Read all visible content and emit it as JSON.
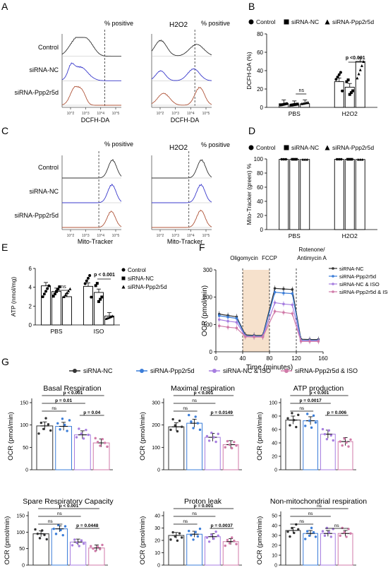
{
  "figure": {
    "panels": {
      "A": "A",
      "B": "B",
      "C": "C",
      "D": "D",
      "E": "E",
      "F": "F",
      "G": "G"
    }
  },
  "panelA": {
    "col1_header": "% positive",
    "col2_title": "H2O2",
    "col2_header": "% positive",
    "rows": [
      "Control",
      "siRNA-NC",
      "siRNA-Ppp2r5d"
    ],
    "xlabel": "DCFH-DA",
    "ticks": [
      "10^2",
      "10^3",
      "10^4",
      "10^5"
    ],
    "colors": {
      "control": "#333333",
      "nc": "#3a3acc",
      "ppp": "#b0553a"
    }
  },
  "panelC": {
    "col1_header": "% positive",
    "col2_title": "H2O2",
    "col2_header": "% positive",
    "rows": [
      "Control",
      "siRNA-NC",
      "siRNA-Ppp2r5d"
    ],
    "xlabel": "Mito-Tracker",
    "ticks": [
      "10^2",
      "10^3",
      "10^4",
      "10^5"
    ]
  },
  "legends": {
    "three_group": [
      "Control",
      "siRNA-NC",
      "siRNA-Ppp2r5d"
    ],
    "four_group": [
      "siRNA-NC",
      "siRNA-Ppp2r5d",
      "siRNA-NC & ISO",
      "siRNA-Ppp2r5d & ISO"
    ],
    "four_colors": [
      "#333333",
      "#3b7dd8",
      "#a77ee0",
      "#d07aa8"
    ]
  },
  "chart_data": [
    {
      "id": "B",
      "type": "bar",
      "ylabel": "DCFH-DA (%)",
      "categories": [
        "PBS",
        "H2O2"
      ],
      "ylim": [
        0,
        80
      ],
      "yticks": [
        0,
        20,
        40,
        60,
        80
      ],
      "series": [
        {
          "name": "Control",
          "values": [
            4,
            28
          ]
        },
        {
          "name": "siRNA-NC",
          "values": [
            3,
            22
          ]
        },
        {
          "name": "siRNA-Ppp2r5d",
          "values": [
            4,
            50
          ]
        }
      ],
      "annotations": [
        "ns",
        "p <0.001"
      ]
    },
    {
      "id": "D",
      "type": "bar",
      "ylabel": "Mito-Tracker (green) %",
      "categories": [
        "PBS",
        "H2O2"
      ],
      "ylim": [
        0,
        100
      ],
      "yticks": [
        0,
        20,
        40,
        60,
        80,
        100
      ],
      "series": [
        {
          "name": "Control",
          "values": [
            99.5,
            99.5
          ]
        },
        {
          "name": "siRNA-NC",
          "values": [
            99.5,
            99.5
          ]
        },
        {
          "name": "siRNA-Ppp2r5d",
          "values": [
            99.3,
            99.3
          ]
        }
      ]
    },
    {
      "id": "E",
      "type": "bar",
      "ylabel": "ATP (nmol/mg)",
      "categories": [
        "PBS",
        "ISO"
      ],
      "ylim": [
        0,
        6
      ],
      "yticks": [
        0,
        2,
        4,
        6
      ],
      "series": [
        {
          "name": "Control",
          "values": [
            4.15,
            4.1
          ]
        },
        {
          "name": "siRNA-NC",
          "values": [
            3.55,
            3.45
          ]
        },
        {
          "name": "siRNA-Ppp2r5d",
          "values": [
            3.0,
            0.95
          ]
        }
      ],
      "annotations": [
        "ns",
        "p < 0.001"
      ]
    },
    {
      "id": "F",
      "type": "line",
      "xlabel": "Time (minutes)",
      "ylabel": "OCR (pmol/min)",
      "xlim": [
        0,
        160
      ],
      "ylim": [
        0,
        300
      ],
      "xticks": [
        0,
        40,
        80,
        120,
        160
      ],
      "yticks": [
        0,
        100,
        200,
        300
      ],
      "injections": [
        "Oligomycin",
        "FCCP",
        "Rotenone/ Antimycin A"
      ],
      "injection_times": [
        40,
        80,
        120
      ],
      "x": [
        5,
        18,
        31,
        44,
        57,
        70,
        88,
        101,
        114,
        127,
        140,
        153
      ],
      "series": [
        {
          "name": "siRNA-NC",
          "values": [
            138,
            133,
            128,
            62,
            60,
            60,
            232,
            230,
            228,
            46,
            45,
            45
          ]
        },
        {
          "name": "siRNA-Ppp2r5d",
          "values": [
            132,
            127,
            122,
            58,
            57,
            57,
            218,
            215,
            213,
            42,
            42,
            42
          ]
        },
        {
          "name": "siRNA-NC & ISO",
          "values": [
            118,
            112,
            108,
            56,
            55,
            55,
            180,
            175,
            172,
            40,
            40,
            40
          ]
        },
        {
          "name": "siRNA-Ppp2r5d & ISO",
          "values": [
            95,
            90,
            87,
            55,
            54,
            54,
            148,
            144,
            140,
            38,
            38,
            38
          ]
        }
      ]
    },
    {
      "id": "G1",
      "type": "bar",
      "title": "Basal Respiration",
      "ylabel": "OCR (pmol/min)",
      "ylim": [
        0,
        150
      ],
      "yticks": [
        0,
        50,
        100,
        150
      ],
      "values": [
        98,
        97,
        78,
        60
      ],
      "annotations": [
        "ns",
        "p = 0.01",
        "p < 0.001",
        "p = 0.04"
      ]
    },
    {
      "id": "G2",
      "type": "bar",
      "title": "Maximal respiration",
      "ylabel": "OCR (pmol/min)",
      "ylim": [
        0,
        300
      ],
      "yticks": [
        0,
        100,
        200,
        300
      ],
      "values": [
        192,
        208,
        145,
        112
      ],
      "annotations": [
        "ns",
        "ns",
        "p < 0.001",
        "p = 0.0149"
      ]
    },
    {
      "id": "G3",
      "type": "bar",
      "title": "ATP production",
      "ylabel": "OCR (pmol/min)",
      "ylim": [
        0,
        100
      ],
      "yticks": [
        0,
        20,
        40,
        60,
        80,
        100
      ],
      "values": [
        74,
        73,
        53,
        42
      ],
      "annotations": [
        "ns",
        "p = 0.0017",
        "p < 0.001",
        "p = 0.006"
      ]
    },
    {
      "id": "G4",
      "type": "bar",
      "title": "Spare Respiratory Capacity",
      "ylabel": "OCR (pmol/min)",
      "ylim": [
        0,
        150
      ],
      "yticks": [
        0,
        50,
        100,
        150
      ],
      "values": [
        95,
        110,
        70,
        52
      ],
      "annotations": [
        "ns",
        "ns",
        "p < 0.001",
        "p = 0.0448"
      ]
    },
    {
      "id": "G5",
      "type": "bar",
      "title": "Proton leak",
      "ylabel": "OCR (pmol/min)",
      "ylim": [
        0,
        40
      ],
      "yticks": [
        0,
        10,
        20,
        30,
        40
      ],
      "values": [
        24,
        25,
        23,
        19
      ],
      "annotations": [
        "ns",
        "ns",
        "p = 0.001",
        "p = 0.0037"
      ]
    },
    {
      "id": "G6",
      "type": "bar",
      "title": "Non-mitochondrial respiration",
      "ylabel": "OCR (pmol/min)",
      "ylim": [
        0,
        50
      ],
      "yticks": [
        0,
        10,
        20,
        30,
        40,
        50
      ],
      "values": [
        35,
        32,
        32,
        32
      ],
      "annotations": [
        "ns",
        "ns",
        "ns",
        "ns"
      ]
    }
  ]
}
